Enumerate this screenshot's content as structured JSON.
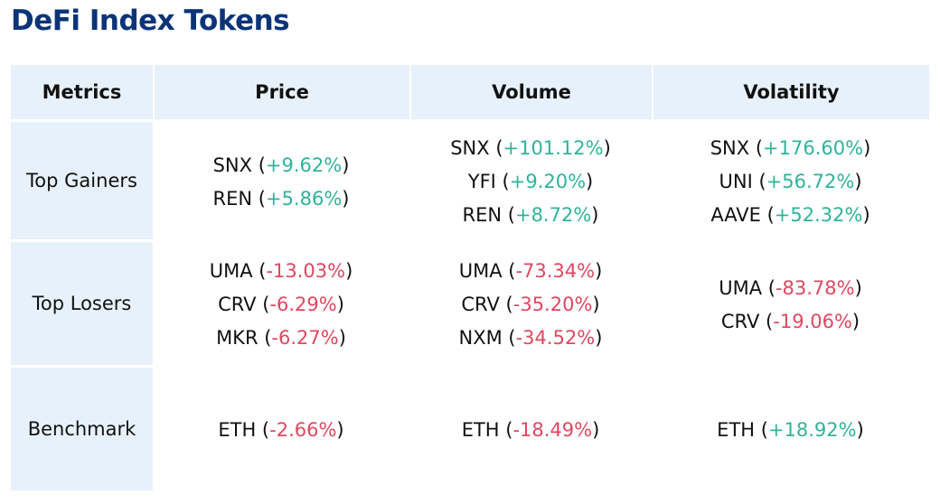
{
  "title": "DeFi Index Tokens",
  "colors": {
    "positive": "#2fb39b",
    "negative": "#e0475f",
    "title": "#0b3478",
    "header_bg": "#e7f1fc"
  },
  "columns": [
    "Metrics",
    "Price",
    "Volume",
    "Volatility"
  ],
  "rows": [
    {
      "label": "Top Gainers",
      "cells": [
        [
          {
            "token": "SNX",
            "change": "+9.62%",
            "dir": "pos"
          },
          {
            "token": "REN",
            "change": "+5.86%",
            "dir": "pos"
          }
        ],
        [
          {
            "token": "SNX",
            "change": "+101.12%",
            "dir": "pos"
          },
          {
            "token": "YFI",
            "change": "+9.20%",
            "dir": "pos"
          },
          {
            "token": "REN",
            "change": "+8.72%",
            "dir": "pos"
          }
        ],
        [
          {
            "token": "SNX",
            "change": "+176.60%",
            "dir": "pos"
          },
          {
            "token": "UNI",
            "change": "+56.72%",
            "dir": "pos"
          },
          {
            "token": "AAVE",
            "change": "+52.32%",
            "dir": "pos"
          }
        ]
      ]
    },
    {
      "label": "Top Losers",
      "cells": [
        [
          {
            "token": "UMA",
            "change": "-13.03%",
            "dir": "neg"
          },
          {
            "token": "CRV",
            "change": "-6.29%",
            "dir": "neg"
          },
          {
            "token": "MKR",
            "change": "-6.27%",
            "dir": "neg"
          }
        ],
        [
          {
            "token": "UMA",
            "change": "-73.34%",
            "dir": "neg"
          },
          {
            "token": "CRV",
            "change": "-35.20%",
            "dir": "neg"
          },
          {
            "token": "NXM",
            "change": "-34.52%",
            "dir": "neg"
          }
        ],
        [
          {
            "token": "UMA",
            "change": "-83.78%",
            "dir": "neg"
          },
          {
            "token": "CRV",
            "change": "-19.06%",
            "dir": "neg"
          }
        ]
      ]
    },
    {
      "label": "Benchmark",
      "cells": [
        [
          {
            "token": "ETH",
            "change": "-2.66%",
            "dir": "neg"
          }
        ],
        [
          {
            "token": "ETH",
            "change": "-18.49%",
            "dir": "neg"
          }
        ],
        [
          {
            "token": "ETH",
            "change": "+18.92%",
            "dir": "pos"
          }
        ]
      ]
    }
  ]
}
